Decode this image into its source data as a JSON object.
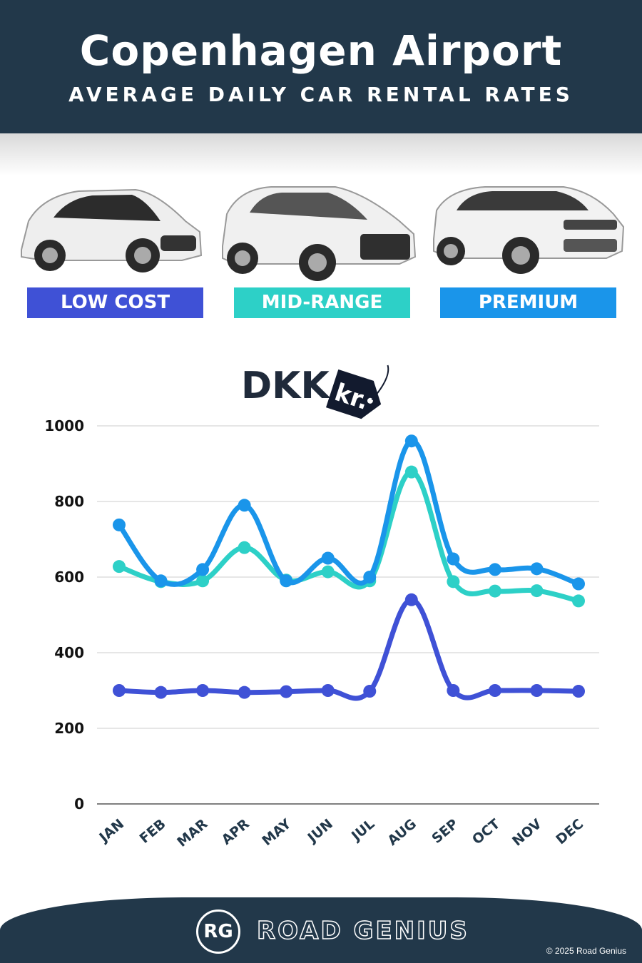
{
  "header": {
    "title": "Copenhagen Airport",
    "subtitle": "AVERAGE DAILY CAR RENTAL RATES"
  },
  "categories": [
    {
      "label": "LOW COST",
      "color": "#3f51d6"
    },
    {
      "label": "MID-RANGE",
      "color": "#2dd0c7"
    },
    {
      "label": "PREMIUM",
      "color": "#1a95ea"
    }
  ],
  "currency": {
    "code": "DKK",
    "tag": "kr."
  },
  "chart_data": {
    "type": "line",
    "categories": [
      "JAN",
      "FEB",
      "MAR",
      "APR",
      "MAY",
      "JUN",
      "JUL",
      "AUG",
      "SEP",
      "OCT",
      "NOV",
      "DEC"
    ],
    "series": [
      {
        "name": "LOW COST",
        "color": "#3f51d6",
        "values": [
          300,
          295,
          300,
          295,
          297,
          300,
          298,
          540,
          300,
          300,
          300,
          298
        ]
      },
      {
        "name": "MID-RANGE",
        "color": "#2dd0c7",
        "values": [
          628,
          588,
          590,
          678,
          592,
          614,
          590,
          878,
          588,
          563,
          564,
          537
        ]
      },
      {
        "name": "PREMIUM",
        "color": "#1a95ea",
        "values": [
          738,
          590,
          620,
          790,
          590,
          650,
          600,
          960,
          648,
          620,
          622,
          582
        ]
      }
    ],
    "yticks": [
      "0",
      "200",
      "400",
      "600",
      "800",
      "1000"
    ],
    "ylim": [
      0,
      1000
    ],
    "grid": true
  },
  "footer": {
    "logo": "RG",
    "brand": "ROAD GENIUS",
    "copyright": "© 2025 Road Genius"
  }
}
